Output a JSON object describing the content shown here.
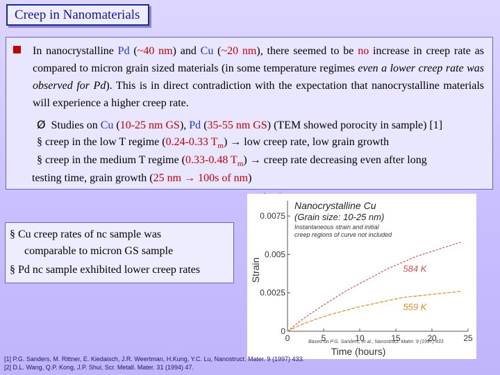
{
  "slide": {
    "title": "Creep in Nanomaterials"
  },
  "main": {
    "para": {
      "t1": "In nanocrystalline ",
      "pd": "Pd",
      "t2": " (",
      "pd_size": "~40 nm",
      "t3": ") and ",
      "cu": "Cu",
      "t4": " (",
      "cu_size": "~20 nm",
      "t5": "), there seemed to be ",
      "no": "no",
      "t6": " increase in creep rate as compared to micron grain sized materials (in some temperature regimes ",
      "italic": "even a lower creep rate was observed for Pd",
      "t7": "). This is in direct contradiction with the expectation that nanocrystalline materials will experience a higher creep rate."
    },
    "studies": {
      "arrow": "Ø",
      "t1": "Studies on ",
      "cu": "Cu",
      "t2": " (",
      "cu_gs": "10-25 nm GS",
      "t3": "), ",
      "pd": "Pd",
      "t4": " (",
      "pd_gs": "35-55 nm GS",
      "t5": ") (TEM showed porocity in sample) [1]"
    },
    "low_t": {
      "bullet": "§",
      "t1": "creep in the low T regime (",
      "range": "0.24-0.33 T",
      "sub": "m",
      "t2": ")  → low creep rate, low grain growth"
    },
    "med_t": {
      "bullet": "§",
      "t1": "creep in the medium T regime (",
      "range": "0.33-0.48 T",
      "sub": "m",
      "t2": ")  → creep rate decreasing even after long"
    },
    "med_t_cont": {
      "t1": "testing time, grain growth (",
      "gg": "25 nm → 100s of nm",
      "t2": ")"
    }
  },
  "box2": {
    "l1": "§ Cu creep rates of nc sample was",
    "l2": "comparable to micron GS sample",
    "l3": "§ Pd nc sample exhibited lower creep rates"
  },
  "refs": {
    "r1": "[1] P.G. Sanders, M. Rittner, E. Kiedaisch, J.R. Weertman, H.Kung, Y.C. Lu, Nanostruct. Mater. 9 (1997) 433.",
    "r2": "[2] D.L. Wang, Q.P. Kong, J.P. Shui, Scr. Metall. Mater. 31 (1994) 47."
  },
  "chart_data": {
    "type": "line",
    "title": "Nanocrystalline Cu",
    "subtitle": "(Grain size: 10-25 nm)",
    "note_l1": "Instantaneous strain and initial",
    "note_l2": "creep regions of curve not included",
    "xlabel": "Time (hours)",
    "ylabel": "Strain",
    "xlim": [
      0,
      25
    ],
    "ylim": [
      0,
      0.0085
    ],
    "x_ticks": [
      "0",
      "5",
      "10",
      "15",
      "20",
      "25"
    ],
    "y_ticks": [
      "0",
      "0.0025",
      "0.005",
      "0.0075"
    ],
    "source": "Based on P.G. Sanders, et al., Nanostruct. Mater. 9 (1997) 433",
    "series": [
      {
        "name": "584 K",
        "color": "#d9504c",
        "x": [
          0,
          2,
          4,
          6,
          8,
          10,
          12,
          14,
          16,
          18,
          20,
          22,
          24
        ],
        "y": [
          0,
          0.00075,
          0.0014,
          0.002,
          0.0026,
          0.0031,
          0.0036,
          0.0041,
          0.0045,
          0.0049,
          0.0052,
          0.0055,
          0.0058
        ]
      },
      {
        "name": "559 K",
        "color": "#e08a24",
        "x": [
          0,
          2,
          4,
          6,
          8,
          10,
          12,
          14,
          16,
          18,
          20,
          22,
          24
        ],
        "y": [
          0,
          0.00045,
          0.0008,
          0.0011,
          0.00135,
          0.0016,
          0.0018,
          0.002,
          0.0022,
          0.0023,
          0.0024,
          0.0025,
          0.0026
        ]
      }
    ],
    "grid": false,
    "legend": "inline"
  }
}
